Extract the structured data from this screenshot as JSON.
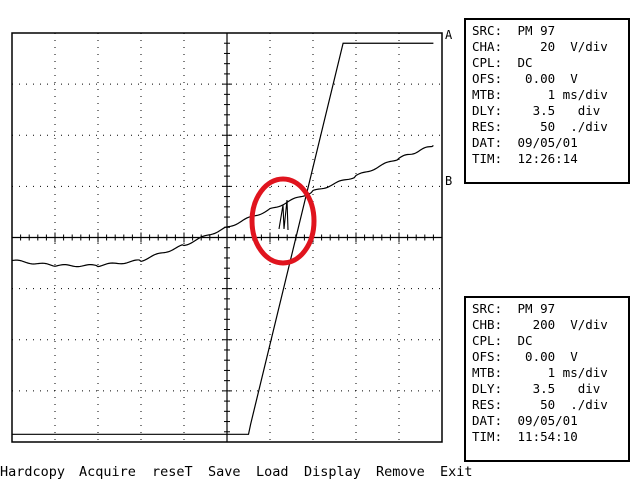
{
  "channel_labels": {
    "a": "A",
    "b": "B"
  },
  "panels": [
    {
      "rows": [
        {
          "k": "SRC:",
          "v": " PM 97"
        },
        {
          "k": "CHA:",
          "v": "    20  V/div"
        },
        {
          "k": "CPL:",
          "v": " DC"
        },
        {
          "k": "OFS:",
          "v": "  0.00  V"
        },
        {
          "k": "MTB:",
          "v": "     1 ms/div"
        },
        {
          "k": "DLY:",
          "v": "   3.5   div"
        },
        {
          "k": "RES:",
          "v": "    50  ./div"
        },
        {
          "k": "DAT:",
          "v": " 09/05/01"
        },
        {
          "k": "TIM:",
          "v": " 12:26:14"
        }
      ]
    },
    {
      "rows": [
        {
          "k": "SRC:",
          "v": " PM 97"
        },
        {
          "k": "CHB:",
          "v": "   200  V/div"
        },
        {
          "k": "CPL:",
          "v": " DC"
        },
        {
          "k": "OFS:",
          "v": "  0.00  V"
        },
        {
          "k": "MTB:",
          "v": "     1 ms/div"
        },
        {
          "k": "DLY:",
          "v": "   3.5   div"
        },
        {
          "k": "RES:",
          "v": "    50  ./div"
        },
        {
          "k": "DAT:",
          "v": " 09/05/01"
        },
        {
          "k": "TIM:",
          "v": " 11:54:10"
        }
      ]
    }
  ],
  "menu": [
    "Hardcopy",
    "Acquire",
    "reseT",
    "Save",
    "Load",
    "Display",
    "Remove",
    "Exit"
  ],
  "colors": {
    "highlight": "#e0141e"
  },
  "chart_data": {
    "type": "line",
    "grid_divisions": {
      "x": 10,
      "y": 8
    },
    "grid": true,
    "series": [
      {
        "name": "A",
        "x": [
          0,
          5.5,
          5.55,
          7.7,
          9.8
        ],
        "y": [
          0.15,
          0.15,
          0.35,
          7.8,
          7.8
        ]
      },
      {
        "name": "B",
        "x": [
          0,
          1,
          2,
          3,
          4,
          5,
          6,
          7,
          8,
          9,
          9.8
        ],
        "y": [
          3.55,
          3.45,
          3.45,
          3.55,
          3.85,
          4.2,
          4.55,
          4.9,
          5.2,
          5.55,
          5.8
        ]
      }
    ]
  }
}
